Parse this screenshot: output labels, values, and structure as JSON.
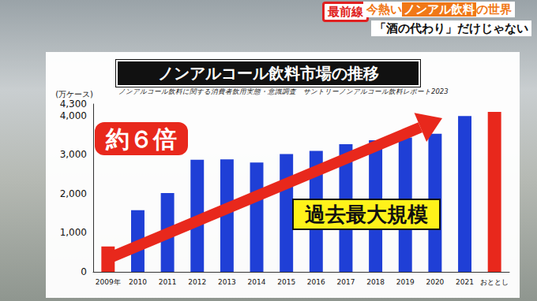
{
  "header": {
    "badge": "最前線",
    "headline": [
      "今熱い",
      "ノンアル飲料",
      "の世界"
    ],
    "subheadline": "「酒の代わり」だけじゃない"
  },
  "chart_data": {
    "type": "bar",
    "title": "ノンアルコール飲料市場の推移",
    "subtitle": "ノンアルコール飲料に関する消費者飲用実態・意識調査　サントリーノンアルコール飲料レポート2023",
    "y_label": "(万ケース)",
    "categories": [
      "2009年",
      "2010",
      "2011",
      "2012",
      "2013",
      "2014",
      "2015",
      "2016",
      "2017",
      "2018",
      "2019",
      "2020",
      "2021",
      "おととし"
    ],
    "values": [
      650,
      1580,
      2020,
      2870,
      2880,
      2800,
      3020,
      3100,
      3270,
      3370,
      3440,
      3540,
      3990,
      4100
    ],
    "colors": [
      "#e8281c",
      "#1f3fd6",
      "#1f3fd6",
      "#1f3fd6",
      "#1f3fd6",
      "#1f3fd6",
      "#1f3fd6",
      "#1f3fd6",
      "#1f3fd6",
      "#1f3fd6",
      "#1f3fd6",
      "#1f3fd6",
      "#1f3fd6",
      "#e8281c"
    ],
    "ylim": [
      0,
      4300
    ],
    "yticks": [
      0,
      1000,
      2000,
      3000,
      4000
    ],
    "grid": false,
    "annotations": [
      "約６倍",
      "過去最大規模"
    ]
  }
}
